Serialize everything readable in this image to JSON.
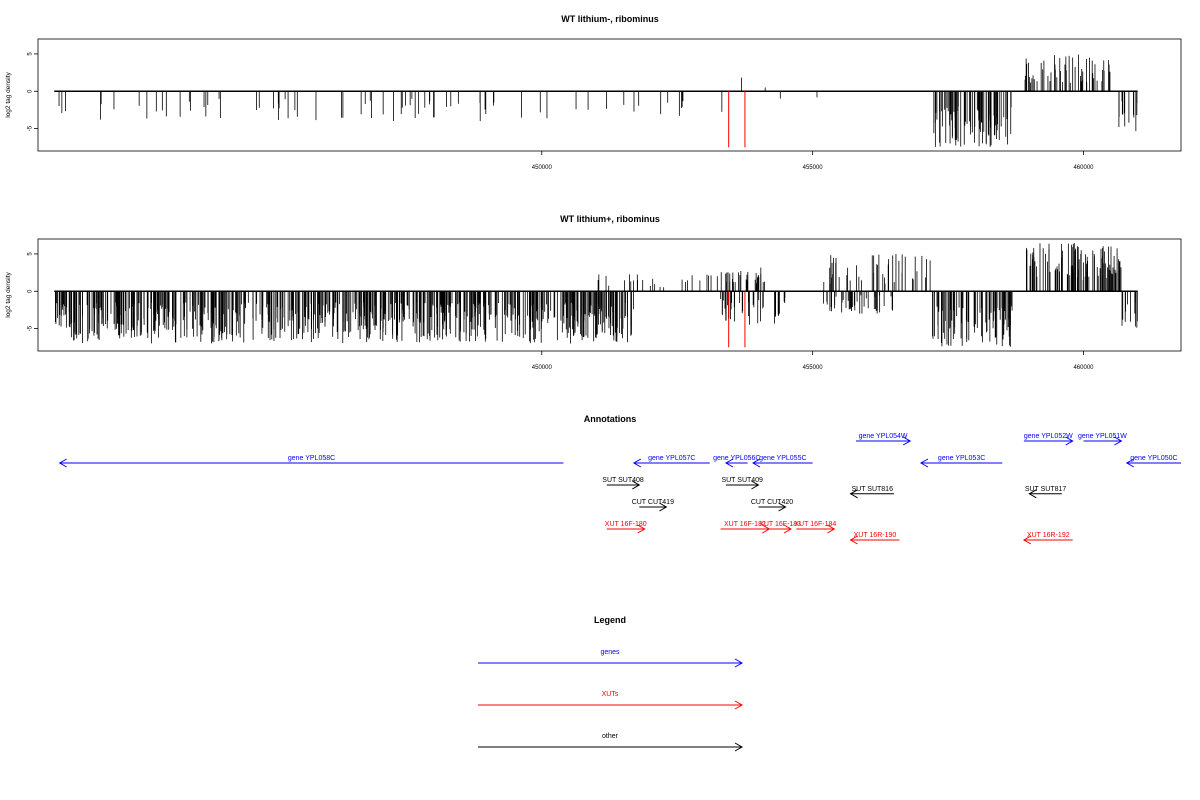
{
  "colors": {
    "genes": "#0000ff",
    "xuts": "#ff0000",
    "other": "#000000",
    "cut_marks": "#ff0000"
  },
  "chart_data": [
    {
      "type": "bar",
      "title": "WT lithium-, ribominus",
      "ylabel": "log2 tag density",
      "xlim": [
        440700,
        461800
      ],
      "ylim": [
        -8,
        7
      ],
      "x_ticks": [
        450000,
        455000,
        460000
      ],
      "x_tick_labels": [
        "450000",
        "455000",
        "460000"
      ],
      "y_ticks": [
        5,
        0,
        -5
      ],
      "y_tick_labels": [
        "5",
        "0",
        "-5"
      ],
      "data_range": [
        441000,
        461000
      ],
      "red_marks": [
        453450,
        453750
      ],
      "dense_regions": [
        {
          "x0": 441000,
          "x1": 450900,
          "sign": -1,
          "min": 1.0,
          "max": 4.0,
          "density": 0.12
        },
        {
          "x0": 450900,
          "x1": 453400,
          "sign": -1,
          "min": 1.0,
          "max": 3.5,
          "density": 0.08
        },
        {
          "x0": 453400,
          "x1": 455500,
          "sign": -1,
          "min": 0.5,
          "max": 1.5,
          "density": 0.02
        },
        {
          "x0": 453400,
          "x1": 455500,
          "sign": 1,
          "min": 0.5,
          "max": 2.0,
          "density": 0.02
        },
        {
          "x0": 457200,
          "x1": 458700,
          "sign": -1,
          "min": 2.0,
          "max": 7.5,
          "density": 1.0
        },
        {
          "x0": 458900,
          "x1": 460500,
          "sign": 1,
          "min": 1.0,
          "max": 5.0,
          "density": 0.6
        },
        {
          "x0": 460600,
          "x1": 461000,
          "sign": -1,
          "min": 1.0,
          "max": 5.5,
          "density": 0.6
        }
      ]
    },
    {
      "type": "bar",
      "title": "WT lithium+, ribominus",
      "ylabel": "log2 tag density",
      "xlim": [
        440700,
        461800
      ],
      "ylim": [
        -8,
        7
      ],
      "x_ticks": [
        450000,
        455000,
        460000
      ],
      "x_tick_labels": [
        "450000",
        "455000",
        "460000"
      ],
      "y_ticks": [
        5,
        0,
        -5
      ],
      "y_tick_labels": [
        "5",
        "0",
        "-5"
      ],
      "data_range": [
        441000,
        461000
      ],
      "red_marks": [
        453450,
        453750
      ],
      "dense_regions": [
        {
          "x0": 441000,
          "x1": 451700,
          "sign": -1,
          "min": 1.5,
          "max": 7.0,
          "density": 1.2
        },
        {
          "x0": 451000,
          "x1": 453300,
          "sign": 1,
          "min": 0.5,
          "max": 2.5,
          "density": 0.2
        },
        {
          "x0": 453300,
          "x1": 454500,
          "sign": -1,
          "min": 0.5,
          "max": 4.5,
          "density": 0.6
        },
        {
          "x0": 453300,
          "x1": 454200,
          "sign": 1,
          "min": 1.0,
          "max": 3.5,
          "density": 0.6
        },
        {
          "x0": 455200,
          "x1": 456500,
          "sign": -1,
          "min": 0.5,
          "max": 3.0,
          "density": 0.6
        },
        {
          "x0": 455200,
          "x1": 457200,
          "sign": 1,
          "min": 1.0,
          "max": 5.0,
          "density": 0.4
        },
        {
          "x0": 457200,
          "x1": 458700,
          "sign": -1,
          "min": 2.0,
          "max": 7.5,
          "density": 1.0
        },
        {
          "x0": 458900,
          "x1": 460700,
          "sign": 1,
          "min": 1.5,
          "max": 6.5,
          "density": 1.0
        },
        {
          "x0": 460700,
          "x1": 461000,
          "sign": -1,
          "min": 1.0,
          "max": 5.0,
          "density": 0.8
        }
      ]
    }
  ],
  "annotations": {
    "title": "Annotations",
    "xlim": [
      440700,
      461800
    ],
    "items": [
      {
        "label": "gene YPL058C",
        "x0": 441100,
        "x1": 450400,
        "dir": "left",
        "type": "gene",
        "row": 0
      },
      {
        "label": "gene YPL057C",
        "x0": 451700,
        "x1": 453100,
        "dir": "left",
        "type": "gene",
        "row": 0
      },
      {
        "label": "gene YPL056C",
        "x0": 453400,
        "x1": 453800,
        "dir": "left",
        "type": "gene",
        "row": 0
      },
      {
        "label": "gene YPL055C",
        "x0": 453900,
        "x1": 455000,
        "dir": "left",
        "type": "gene",
        "row": 0
      },
      {
        "label": "gene YPL054W",
        "x0": 455800,
        "x1": 456800,
        "dir": "right",
        "type": "gene",
        "row": -1
      },
      {
        "label": "gene YPL053C",
        "x0": 457000,
        "x1": 458500,
        "dir": "left",
        "type": "gene",
        "row": 0
      },
      {
        "label": "gene YPL052W",
        "x0": 458900,
        "x1": 459800,
        "dir": "right",
        "type": "gene",
        "row": -1
      },
      {
        "label": "gene YPL051W",
        "x0": 460000,
        "x1": 460700,
        "dir": "right",
        "type": "gene",
        "row": -1
      },
      {
        "label": "gene YPL050C",
        "x0": 460800,
        "x1": 461800,
        "dir": "left",
        "type": "gene",
        "row": 0
      },
      {
        "label": "SUT SUT408",
        "x0": 451200,
        "x1": 451800,
        "dir": "right",
        "type": "other",
        "row": 1
      },
      {
        "label": "SUT SUT409",
        "x0": 453400,
        "x1": 454000,
        "dir": "right",
        "type": "other",
        "row": 1
      },
      {
        "label": "SUT SUT816",
        "x0": 455700,
        "x1": 456500,
        "dir": "left",
        "type": "other",
        "row": 1.4
      },
      {
        "label": "SUT SUT817",
        "x0": 459000,
        "x1": 459600,
        "dir": "left",
        "type": "other",
        "row": 1.4
      },
      {
        "label": "CUT CUT419",
        "x0": 451800,
        "x1": 452300,
        "dir": "right",
        "type": "other",
        "row": 2
      },
      {
        "label": "CUT CUT420",
        "x0": 454000,
        "x1": 454500,
        "dir": "right",
        "type": "other",
        "row": 2
      },
      {
        "label": "XUT 16F-180",
        "x0": 451200,
        "x1": 451900,
        "dir": "right",
        "type": "xut",
        "row": 3
      },
      {
        "label": "XUT 16F-182",
        "x0": 453300,
        "x1": 454200,
        "dir": "right",
        "type": "xut",
        "row": 3
      },
      {
        "label": "XUT 16F-183",
        "x0": 454200,
        "x1": 454600,
        "dir": "right",
        "type": "xut",
        "row": 3
      },
      {
        "label": "XUT 16F-184",
        "x0": 454700,
        "x1": 455400,
        "dir": "right",
        "type": "xut",
        "row": 3
      },
      {
        "label": "XUT 16R-190",
        "x0": 455700,
        "x1": 456600,
        "dir": "left",
        "type": "xut",
        "row": 3.5
      },
      {
        "label": "XUT 16R-192",
        "x0": 458900,
        "x1": 459800,
        "dir": "left",
        "type": "xut",
        "row": 3.5
      }
    ]
  },
  "legend": {
    "title": "Legend",
    "items": [
      {
        "label": "genes",
        "type": "gene"
      },
      {
        "label": "XUTs",
        "type": "xut"
      },
      {
        "label": "other",
        "type": "other"
      }
    ]
  }
}
